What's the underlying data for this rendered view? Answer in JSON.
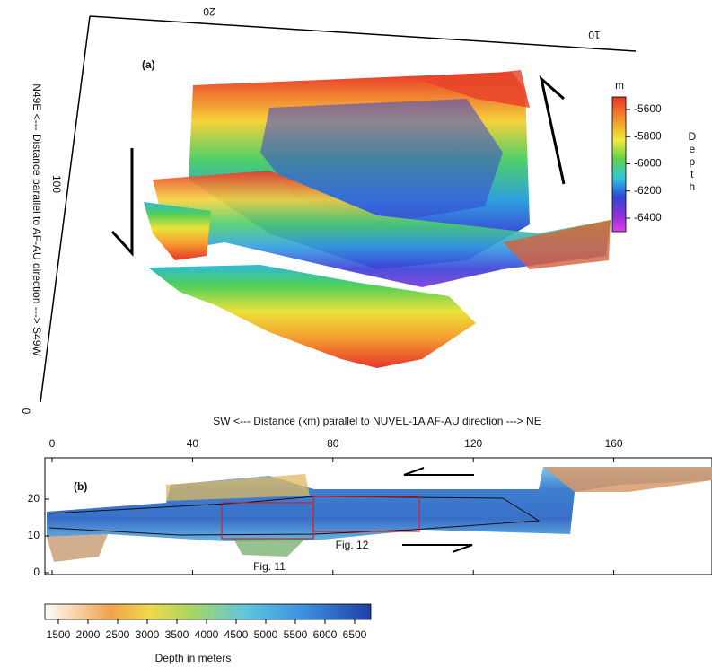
{
  "panel_a": {
    "label": "(a)",
    "top_axis_ticks": [
      20,
      10
    ],
    "left_axis_ticks": [
      100,
      0
    ],
    "left_axis_label": "N49E <--- Distance parallel to AF-AU direction ---> S49W",
    "colorbar": {
      "unit": "m",
      "title": "Depth",
      "ticks": [
        -5600,
        -5800,
        -6000,
        -6200,
        -6400
      ]
    }
  },
  "panel_b": {
    "label": "(b)",
    "x_axis_label": "SW <--- Distance (km) parallel to NUVEL-1A AF-AU direction ---> NE",
    "xticks": [
      0,
      40,
      80,
      120,
      160
    ],
    "yticks": [
      0,
      10,
      20
    ],
    "annotations": [
      "Fig. 11",
      "Fig. 12"
    ],
    "colorbar": {
      "ticks": [
        1500,
        2000,
        2500,
        3000,
        3500,
        4000,
        4500,
        5000,
        5500,
        6000,
        6500
      ],
      "label": "Depth in meters"
    }
  }
}
